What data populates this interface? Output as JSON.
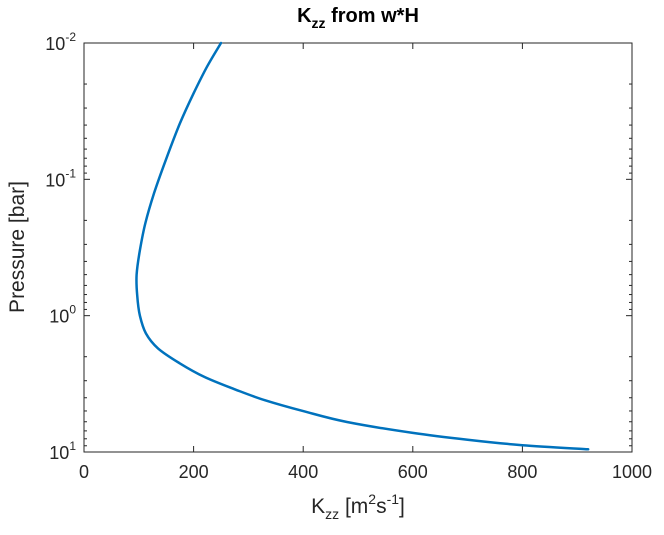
{
  "chart_data": {
    "type": "line",
    "title": {
      "main": "K",
      "sub": "zz",
      "rest": " from w*H"
    },
    "xlabel": {
      "main": "K",
      "sub": "zz",
      "mid": " [m",
      "sup1": "2",
      "s": "s",
      "sup2": "-1",
      "end": "]"
    },
    "ylabel": "Pressure [bar]",
    "xlim": [
      0,
      1000
    ],
    "ylim": [
      0.01,
      10
    ],
    "yscale": "log",
    "yaxis_reversed": true,
    "grid": false,
    "xticks": [
      0,
      200,
      400,
      600,
      800,
      1000
    ],
    "xtick_labels": [
      "0",
      "200",
      "400",
      "600",
      "800",
      "1000"
    ],
    "yticks": [
      {
        "value": 0.01,
        "base": "10",
        "exp": "-2"
      },
      {
        "value": 0.1,
        "base": "10",
        "exp": "-1"
      },
      {
        "value": 1,
        "base": "10",
        "exp": "0"
      },
      {
        "value": 10,
        "base": "10",
        "exp": "1"
      }
    ],
    "series": [
      {
        "color": "#0072BD",
        "points": [
          {
            "x": 250,
            "y": 0.01
          },
          {
            "x": 225,
            "y": 0.0148
          },
          {
            "x": 200,
            "y": 0.0234
          },
          {
            "x": 175,
            "y": 0.0389
          },
          {
            "x": 150,
            "y": 0.0708
          },
          {
            "x": 128,
            "y": 0.1259
          },
          {
            "x": 112,
            "y": 0.2089
          },
          {
            "x": 102,
            "y": 0.3311
          },
          {
            "x": 96,
            "y": 0.5012
          },
          {
            "x": 97,
            "y": 0.7079
          },
          {
            "x": 102,
            "y": 1.0
          },
          {
            "x": 113,
            "y": 1.349
          },
          {
            "x": 135,
            "y": 1.738
          },
          {
            "x": 175,
            "y": 2.239
          },
          {
            "x": 220,
            "y": 2.818
          },
          {
            "x": 275,
            "y": 3.467
          },
          {
            "x": 330,
            "y": 4.169
          },
          {
            "x": 400,
            "y": 5.012
          },
          {
            "x": 480,
            "y": 6.026
          },
          {
            "x": 600,
            "y": 7.244
          },
          {
            "x": 700,
            "y": 8.128
          },
          {
            "x": 800,
            "y": 8.913
          },
          {
            "x": 920,
            "y": 9.55
          }
        ]
      }
    ]
  }
}
